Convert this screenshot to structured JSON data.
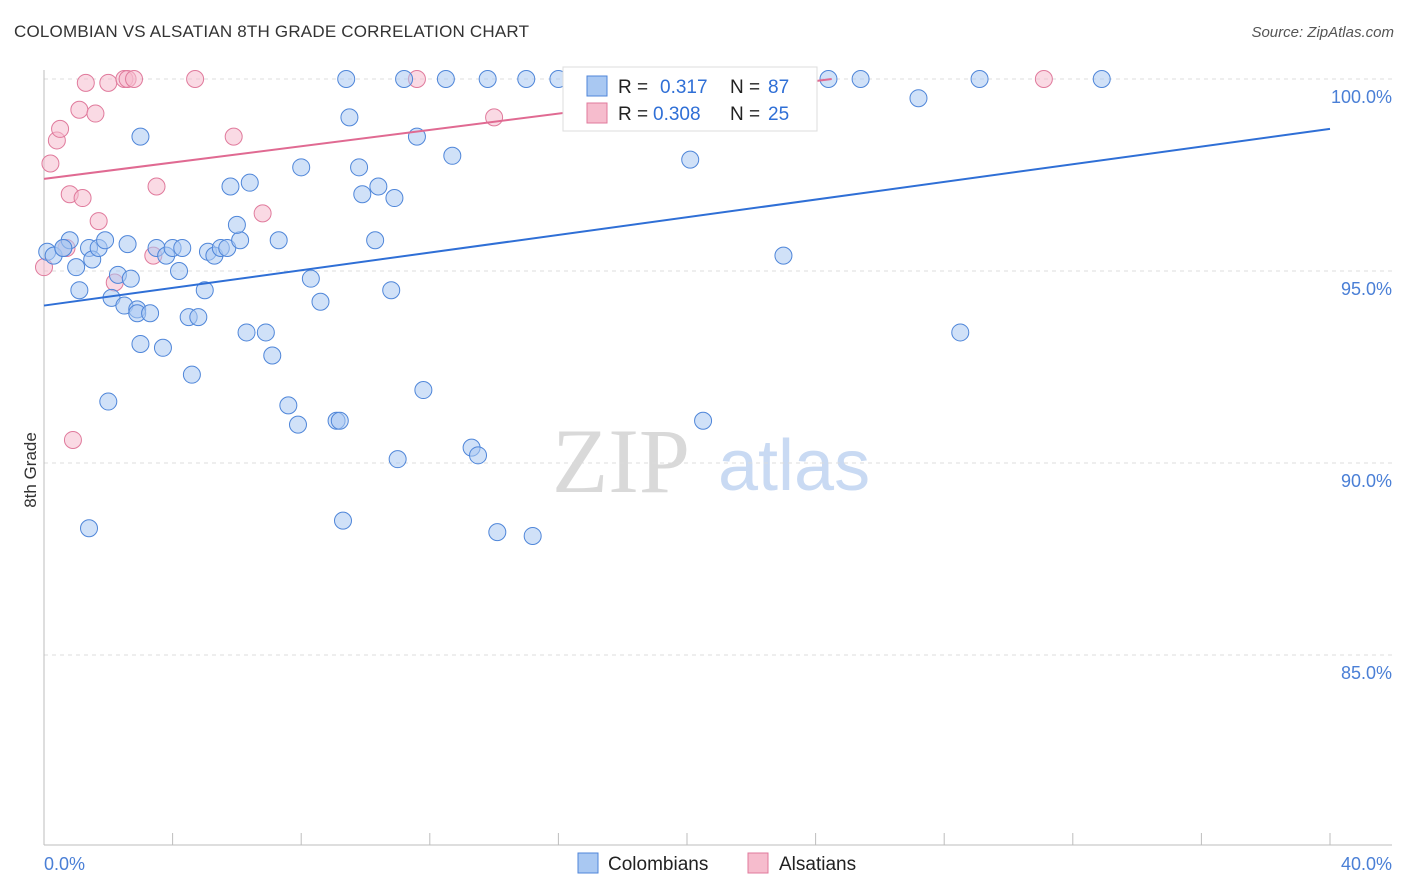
{
  "header": {
    "title": "COLOMBIAN VS ALSATIAN 8TH GRADE CORRELATION CHART",
    "source": "Source: ZipAtlas.com"
  },
  "watermark": {
    "zip": "ZIP",
    "atlas": "atlas"
  },
  "colors": {
    "blue_fill": "#a9c8f2",
    "blue_stroke": "#4f86d9",
    "blue_line": "#2f6fd6",
    "pink_fill": "#f6bccd",
    "pink_stroke": "#e07a9c",
    "pink_line": "#e06a92",
    "grid": "#dcdcdc",
    "tick_text": "#4a7fd6"
  },
  "legend": {
    "rows": [
      {
        "r_label": "R = ",
        "r_value": "0.317",
        "n_label": "N = ",
        "n_value": "87",
        "color_key": "blue"
      },
      {
        "r_label": "R = ",
        "r_value": "0.308",
        "n_label": "N = ",
        "n_value": "25",
        "color_key": "pink"
      }
    ]
  },
  "bottom_legend": {
    "items": [
      {
        "label": "Colombians"
      },
      {
        "label": "Alsatians"
      }
    ]
  },
  "chart_data": {
    "type": "scatter",
    "title": "COLOMBIAN VS ALSATIAN 8TH GRADE CORRELATION CHART",
    "xlabel": "",
    "ylabel": "8th Grade",
    "xlim": [
      0,
      40
    ],
    "ylim": [
      80.5,
      101.0
    ],
    "x_tick_labels": [
      "0.0%",
      "40.0%"
    ],
    "y_ticks": [
      100,
      95,
      90,
      85
    ],
    "y_tick_labels": [
      "100.0%",
      "95.0%",
      "90.0%",
      "85.0%"
    ],
    "grid": true,
    "legend_position": "top-center",
    "series": [
      {
        "name": "Colombians",
        "color": "#a9c8f2",
        "r": 0.317,
        "n": 87,
        "trend": {
          "x": [
            0,
            40
          ],
          "y": [
            94.1,
            98.7
          ]
        },
        "points": [
          [
            0.1,
            95.5
          ],
          [
            0.3,
            95.4
          ],
          [
            0.6,
            95.6
          ],
          [
            0.8,
            95.8
          ],
          [
            1.0,
            95.1
          ],
          [
            1.1,
            94.5
          ],
          [
            1.4,
            95.6
          ],
          [
            1.5,
            95.3
          ],
          [
            1.7,
            95.6
          ],
          [
            1.9,
            95.8
          ],
          [
            2.1,
            94.3
          ],
          [
            2.3,
            94.9
          ],
          [
            2.5,
            94.1
          ],
          [
            2.6,
            95.7
          ],
          [
            2.7,
            94.8
          ],
          [
            2.9,
            94.0
          ],
          [
            2.9,
            93.9
          ],
          [
            3.0,
            93.1
          ],
          [
            3.3,
            93.9
          ],
          [
            3.5,
            95.6
          ],
          [
            3.7,
            93.0
          ],
          [
            3.8,
            95.4
          ],
          [
            4.0,
            95.6
          ],
          [
            4.2,
            95.0
          ],
          [
            4.3,
            95.6
          ],
          [
            4.5,
            93.8
          ],
          [
            4.6,
            92.3
          ],
          [
            4.8,
            93.8
          ],
          [
            5.0,
            94.5
          ],
          [
            5.1,
            95.5
          ],
          [
            5.3,
            95.4
          ],
          [
            5.5,
            95.6
          ],
          [
            5.7,
            95.6
          ],
          [
            6.1,
            95.8
          ],
          [
            5.8,
            97.2
          ],
          [
            6.0,
            96.2
          ],
          [
            6.4,
            97.3
          ],
          [
            6.3,
            93.4
          ],
          [
            6.9,
            93.4
          ],
          [
            7.1,
            92.8
          ],
          [
            7.3,
            95.8
          ],
          [
            7.6,
            91.5
          ],
          [
            7.9,
            91.0
          ],
          [
            8.0,
            97.7
          ],
          [
            8.3,
            94.8
          ],
          [
            8.6,
            94.2
          ],
          [
            9.1,
            91.1
          ],
          [
            9.2,
            91.1
          ],
          [
            9.4,
            100.0
          ],
          [
            9.5,
            99.0
          ],
          [
            9.8,
            97.7
          ],
          [
            9.9,
            97.0
          ],
          [
            10.3,
            95.8
          ],
          [
            10.4,
            97.2
          ],
          [
            10.8,
            94.5
          ],
          [
            10.9,
            96.9
          ],
          [
            11.0,
            90.1
          ],
          [
            11.2,
            100.0
          ],
          [
            11.6,
            98.5
          ],
          [
            11.8,
            91.9
          ],
          [
            12.5,
            100.0
          ],
          [
            12.7,
            98.0
          ],
          [
            13.3,
            90.4
          ],
          [
            13.5,
            90.2
          ],
          [
            13.8,
            100.0
          ],
          [
            14.1,
            88.2
          ],
          [
            15.0,
            100.0
          ],
          [
            16.0,
            100.0
          ],
          [
            16.8,
            100.0
          ],
          [
            18.6,
            100.0
          ],
          [
            19.3,
            100.0
          ],
          [
            20.1,
            97.9
          ],
          [
            20.5,
            91.1
          ],
          [
            21.2,
            100.0
          ],
          [
            23.0,
            95.4
          ],
          [
            24.4,
            100.0
          ],
          [
            25.4,
            100.0
          ],
          [
            27.2,
            99.5
          ],
          [
            28.5,
            93.4
          ],
          [
            29.1,
            100.0
          ],
          [
            32.9,
            100.0
          ],
          [
            3.0,
            98.5
          ],
          [
            2.0,
            91.6
          ],
          [
            1.4,
            88.3
          ],
          [
            9.3,
            88.5
          ],
          [
            15.2,
            88.1
          ],
          [
            0.6,
            95.6
          ]
        ]
      },
      {
        "name": "Alsatians",
        "color": "#f6bccd",
        "r": 0.308,
        "n": 25,
        "trend": {
          "x": [
            0,
            24.5
          ],
          "y": [
            97.4,
            100.0
          ]
        },
        "points": [
          [
            0.0,
            95.1
          ],
          [
            0.2,
            97.8
          ],
          [
            0.4,
            98.4
          ],
          [
            0.5,
            98.7
          ],
          [
            0.8,
            97.0
          ],
          [
            0.9,
            90.6
          ],
          [
            1.1,
            99.2
          ],
          [
            1.2,
            96.9
          ],
          [
            1.3,
            99.9
          ],
          [
            1.6,
            99.1
          ],
          [
            1.7,
            96.3
          ],
          [
            2.0,
            99.9
          ],
          [
            2.2,
            94.7
          ],
          [
            2.5,
            100.0
          ],
          [
            2.6,
            100.0
          ],
          [
            2.8,
            100.0
          ],
          [
            3.4,
            95.4
          ],
          [
            3.5,
            97.2
          ],
          [
            4.7,
            100.0
          ],
          [
            5.9,
            98.5
          ],
          [
            6.8,
            96.5
          ],
          [
            11.6,
            100.0
          ],
          [
            14.0,
            99.0
          ],
          [
            0.7,
            95.6
          ],
          [
            31.1,
            100.0
          ]
        ]
      }
    ]
  }
}
